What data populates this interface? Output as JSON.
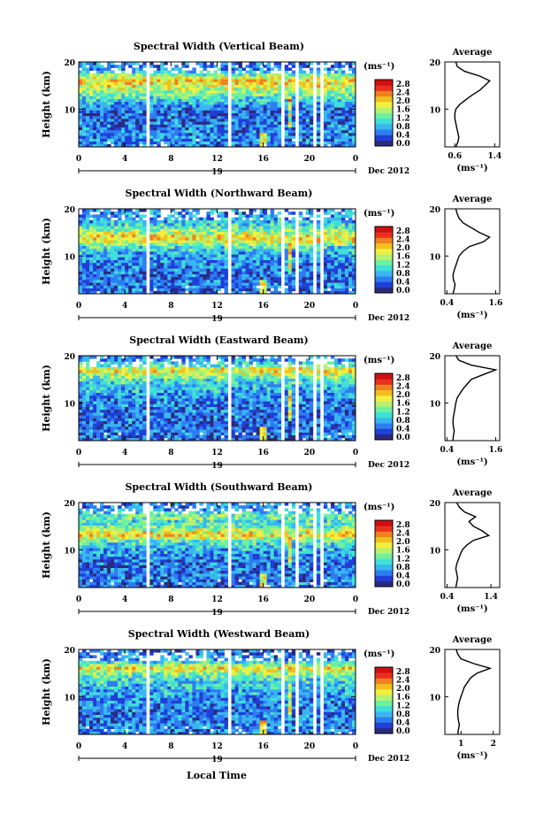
{
  "footer": {
    "xlabel": "Local Time"
  },
  "colorbar": {
    "unit": "(ms⁻¹)",
    "ticks": [
      "2.8",
      "2.4",
      "2.0",
      "1.6",
      "1.2",
      "0.8",
      "0.4",
      "0.0"
    ],
    "colors": [
      "#2a2a80",
      "#1f3fd8",
      "#2e7cf2",
      "#39b6f0",
      "#3fe0d8",
      "#6ef0a0",
      "#b8f070",
      "#f0f040",
      "#f0c020",
      "#f08020",
      "#e83020",
      "#d01010"
    ]
  },
  "chart_data": [
    {
      "type": "heatmap",
      "title": "Spectral Width (Vertical Beam)",
      "ylabel": "Height (km)",
      "xlabel": "Local Time",
      "x_ticks": [
        "0",
        "4",
        "8",
        "12",
        "16",
        "20",
        "0"
      ],
      "x_range": [
        0,
        24
      ],
      "y_ticks": [
        "20",
        "10"
      ],
      "y_range": [
        2,
        20
      ],
      "date_day": "19",
      "date_label": "Dec 2012",
      "colorbar_range": [
        0.0,
        2.8
      ],
      "gaps_hours": [
        [
          5.7,
          6.0
        ],
        [
          12.8,
          13.2
        ],
        [
          17.4,
          17.8
        ],
        [
          18.8,
          19.1
        ],
        [
          20.2,
          20.5
        ],
        [
          21.0,
          21.3
        ]
      ],
      "profile": {
        "title": "Average",
        "xlabel": "(ms⁻¹)",
        "x_ticks": [
          "0.6",
          "1.4"
        ],
        "x_range": [
          0.4,
          1.5
        ],
        "y_ticks": [
          "20",
          "10"
        ],
        "heights": [
          2,
          3,
          4,
          5,
          6,
          7,
          8,
          9,
          10,
          11,
          12,
          13,
          14,
          15,
          16,
          17,
          18,
          19,
          20
        ],
        "values": [
          0.62,
          0.66,
          0.68,
          0.66,
          0.64,
          0.62,
          0.6,
          0.6,
          0.62,
          0.7,
          0.82,
          0.95,
          1.1,
          1.2,
          1.3,
          1.1,
          0.8,
          0.65,
          0.62
        ]
      }
    },
    {
      "type": "heatmap",
      "title": "Spectral Width (Northward Beam)",
      "ylabel": "Height (km)",
      "xlabel": "Local Time",
      "x_ticks": [
        "0",
        "4",
        "8",
        "12",
        "16",
        "20",
        "0"
      ],
      "x_range": [
        0,
        24
      ],
      "y_ticks": [
        "20",
        "10"
      ],
      "y_range": [
        2,
        20
      ],
      "date_day": "19",
      "date_label": "Dec 2012",
      "colorbar_range": [
        0.0,
        2.8
      ],
      "gaps_hours": [
        [
          5.7,
          6.0
        ],
        [
          12.8,
          13.2
        ],
        [
          17.4,
          17.8
        ],
        [
          18.8,
          19.1
        ],
        [
          20.2,
          20.5
        ],
        [
          21.0,
          21.3
        ]
      ],
      "profile": {
        "title": "Average",
        "xlabel": "(ms⁻¹)",
        "x_ticks": [
          "0.4",
          "1.6"
        ],
        "x_range": [
          0.35,
          1.7
        ],
        "y_ticks": [
          "20",
          "10"
        ],
        "heights": [
          2,
          3,
          4,
          5,
          6,
          7,
          8,
          9,
          10,
          11,
          12,
          13,
          14,
          15,
          16,
          17,
          18,
          19,
          20
        ],
        "values": [
          0.55,
          0.58,
          0.6,
          0.56,
          0.55,
          0.58,
          0.62,
          0.66,
          0.7,
          0.8,
          0.95,
          1.3,
          1.45,
          1.2,
          1.0,
          0.8,
          0.7,
          0.65,
          0.62
        ]
      }
    },
    {
      "type": "heatmap",
      "title": "Spectral Width (Eastward Beam)",
      "ylabel": "Height (km)",
      "xlabel": "Local Time",
      "x_ticks": [
        "0",
        "4",
        "8",
        "12",
        "16",
        "20",
        "0"
      ],
      "x_range": [
        0,
        24
      ],
      "y_ticks": [
        "20",
        "10"
      ],
      "y_range": [
        2,
        20
      ],
      "date_day": "19",
      "date_label": "Dec 2012",
      "colorbar_range": [
        0.0,
        2.8
      ],
      "gaps_hours": [
        [
          5.7,
          6.0
        ],
        [
          12.8,
          13.2
        ],
        [
          17.4,
          17.8
        ],
        [
          18.8,
          19.1
        ],
        [
          20.2,
          20.5
        ],
        [
          21.0,
          21.3
        ]
      ],
      "profile": {
        "title": "Average",
        "xlabel": "(ms⁻¹)",
        "x_ticks": [
          "0.4",
          "1.6"
        ],
        "x_range": [
          0.35,
          1.7
        ],
        "y_ticks": [
          "20",
          "10"
        ],
        "heights": [
          2,
          3,
          4,
          5,
          6,
          7,
          8,
          9,
          10,
          11,
          12,
          13,
          14,
          15,
          16,
          17,
          18,
          19,
          20
        ],
        "values": [
          0.55,
          0.56,
          0.58,
          0.56,
          0.55,
          0.56,
          0.58,
          0.6,
          0.62,
          0.65,
          0.72,
          0.8,
          0.9,
          1.0,
          1.3,
          1.6,
          1.0,
          0.7,
          0.62
        ]
      }
    },
    {
      "type": "heatmap",
      "title": "Spectral Width (Southward Beam)",
      "ylabel": "Height (km)",
      "xlabel": "Local Time",
      "x_ticks": [
        "0",
        "4",
        "8",
        "12",
        "16",
        "20",
        "0"
      ],
      "x_range": [
        0,
        24
      ],
      "y_ticks": [
        "20",
        "10"
      ],
      "y_range": [
        2,
        20
      ],
      "date_day": "19",
      "date_label": "Dec 2012",
      "colorbar_range": [
        0.0,
        2.8
      ],
      "gaps_hours": [
        [
          5.7,
          6.0
        ],
        [
          12.8,
          13.2
        ],
        [
          17.4,
          17.8
        ],
        [
          18.8,
          19.1
        ],
        [
          20.2,
          20.5
        ],
        [
          21.0,
          21.3
        ]
      ],
      "profile": {
        "title": "Average",
        "xlabel": "(ms⁻¹)",
        "x_ticks": [
          "0.4",
          "1.4"
        ],
        "x_range": [
          0.35,
          1.6
        ],
        "y_ticks": [
          "20",
          "10"
        ],
        "heights": [
          2,
          3,
          4,
          5,
          6,
          7,
          8,
          9,
          10,
          11,
          12,
          13,
          14,
          15,
          16,
          17,
          18,
          19,
          20
        ],
        "values": [
          0.6,
          0.62,
          0.64,
          0.62,
          0.6,
          0.62,
          0.66,
          0.7,
          0.75,
          0.85,
          1.0,
          1.35,
          1.2,
          1.0,
          0.9,
          1.05,
          0.8,
          0.68,
          0.62
        ]
      }
    },
    {
      "type": "heatmap",
      "title": "Spectral Width (Westward Beam)",
      "ylabel": "Height (km)",
      "xlabel": "Local Time",
      "x_ticks": [
        "0",
        "4",
        "8",
        "12",
        "16",
        "20",
        "0"
      ],
      "x_range": [
        0,
        24
      ],
      "y_ticks": [
        "20",
        "10"
      ],
      "y_range": [
        2,
        20
      ],
      "date_day": "19",
      "date_label": "Dec 2012",
      "colorbar_range": [
        0.0,
        2.8
      ],
      "gaps_hours": [
        [
          5.7,
          6.0
        ],
        [
          12.8,
          13.2
        ],
        [
          17.4,
          17.8
        ],
        [
          18.8,
          19.1
        ],
        [
          20.2,
          20.5
        ],
        [
          21.0,
          21.3
        ]
      ],
      "profile": {
        "title": "Average",
        "xlabel": "(ms⁻¹)",
        "x_ticks": [
          "1",
          "2"
        ],
        "x_range": [
          0.5,
          2.2
        ],
        "y_ticks": [
          "20",
          "10"
        ],
        "heights": [
          2,
          3,
          4,
          5,
          6,
          7,
          8,
          9,
          10,
          11,
          12,
          13,
          14,
          15,
          16,
          17,
          18,
          19,
          20
        ],
        "values": [
          0.9,
          0.92,
          0.95,
          0.92,
          0.9,
          0.9,
          0.92,
          0.95,
          1.0,
          1.05,
          1.1,
          1.2,
          1.3,
          1.5,
          1.9,
          1.4,
          1.0,
          0.9,
          0.85
        ]
      }
    }
  ]
}
